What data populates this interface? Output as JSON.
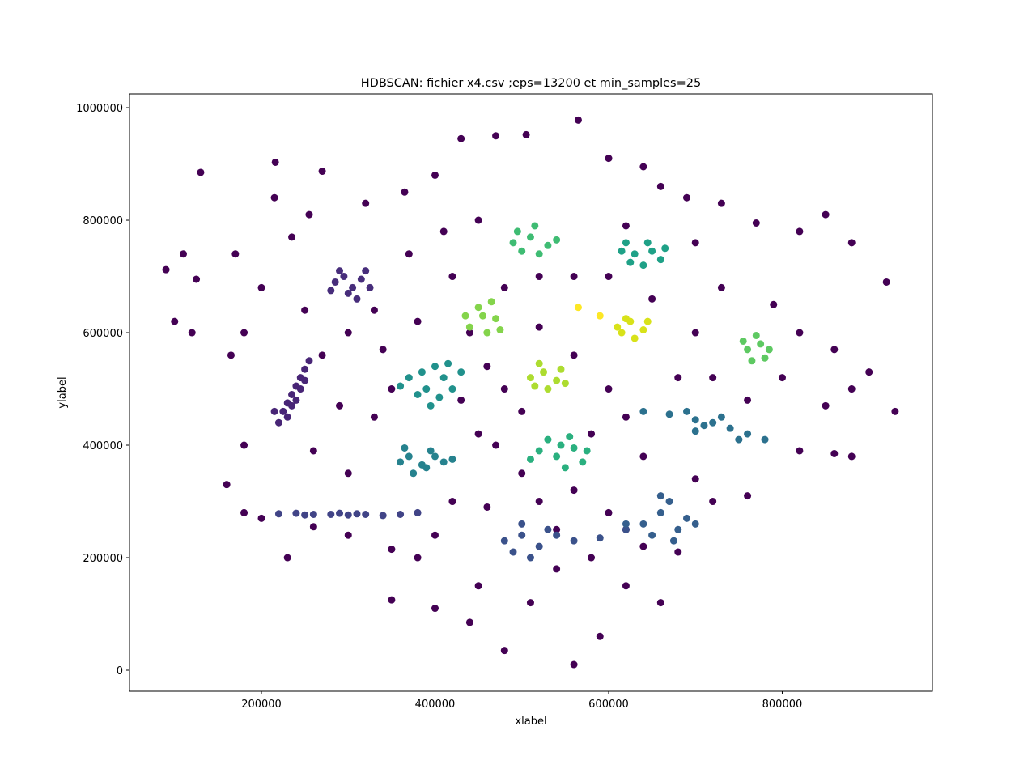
{
  "chart_data": {
    "type": "scatter",
    "title": "HDBSCAN: fichier x4.csv ;eps=13200 et min_samples=25",
    "x_label": "xlabel",
    "y_label": "ylabel",
    "xlim": [
      48000,
      973000
    ],
    "ylim": [
      -37400,
      1024500
    ],
    "xticks": [
      200000,
      400000,
      600000,
      800000
    ],
    "yticks": [
      0,
      200000,
      400000,
      600000,
      800000,
      1000000
    ],
    "series": [
      {
        "color": "#440154",
        "x": [
          90000,
          130000,
          110000,
          120000,
          100000,
          125000,
          170000,
          165000,
          180000,
          200000,
          215000,
          216000,
          270000,
          255000,
          235000,
          320000,
          365000,
          400000,
          430000,
          470000,
          505000,
          565000,
          600000,
          640000,
          660000,
          690000,
          730000,
          770000,
          820000,
          850000,
          880000,
          920000,
          860000,
          900000,
          880000,
          930000,
          850000,
          880000,
          860000,
          820000,
          760000,
          720000,
          700000,
          680000,
          640000,
          620000,
          590000,
          560000,
          480000,
          440000,
          400000,
          350000,
          350000,
          300000,
          260000,
          230000,
          200000,
          180000,
          160000,
          180000,
          260000,
          300000,
          330000,
          290000,
          270000,
          250000,
          300000,
          340000,
          380000,
          420000,
          450000,
          480000,
          520000,
          560000,
          600000,
          620000,
          580000,
          500000,
          450000,
          420000,
          460000,
          520000,
          560000,
          600000,
          640000,
          680000,
          700000,
          730000,
          700000,
          620000,
          560000,
          520000,
          600000,
          650000,
          720000,
          760000,
          800000,
          820000,
          790000,
          460000,
          480000,
          430000,
          350000,
          330000,
          370000,
          410000,
          440000,
          470000,
          500000,
          540000,
          580000,
          620000,
          660000,
          510000,
          540000,
          450000,
          380000,
          400000
        ],
        "values": [
          712000,
          885000,
          740000,
          600000,
          620000,
          695000,
          740000,
          560000,
          600000,
          680000,
          840000,
          903000,
          887000,
          810000,
          770000,
          830000,
          850000,
          880000,
          945000,
          950000,
          952000,
          978000,
          910000,
          895000,
          860000,
          840000,
          830000,
          795000,
          780000,
          810000,
          760000,
          690000,
          570000,
          530000,
          500000,
          460000,
          470000,
          380000,
          385000,
          390000,
          310000,
          300000,
          340000,
          210000,
          220000,
          150000,
          60000,
          10000,
          35000,
          85000,
          110000,
          125000,
          215000,
          240000,
          255000,
          200000,
          270000,
          280000,
          330000,
          400000,
          390000,
          350000,
          450000,
          470000,
          560000,
          640000,
          600000,
          570000,
          620000,
          700000,
          800000,
          680000,
          610000,
          560000,
          500000,
          450000,
          420000,
          460000,
          420000,
          300000,
          290000,
          300000,
          320000,
          280000,
          380000,
          520000,
          600000,
          680000,
          760000,
          790000,
          700000,
          700000,
          700000,
          660000,
          520000,
          480000,
          520000,
          600000,
          650000,
          540000,
          500000,
          480000,
          500000,
          640000,
          740000,
          780000,
          600000,
          400000,
          350000,
          250000,
          200000,
          250000,
          120000,
          120000,
          180000,
          150000,
          200000,
          240000
        ]
      },
      {
        "color": "#472d7b",
        "x": [
          285000,
          295000,
          305000,
          315000,
          300000,
          320000,
          290000,
          310000,
          280000,
          325000
        ],
        "values": [
          690000,
          700000,
          680000,
          695000,
          670000,
          710000,
          710000,
          660000,
          675000,
          680000
        ]
      },
      {
        "color": "#482576",
        "x": [
          220000,
          225000,
          230000,
          235000,
          240000,
          245000,
          250000,
          255000,
          230000,
          245000,
          235000,
          250000,
          215000,
          240000
        ],
        "values": [
          440000,
          460000,
          475000,
          490000,
          505000,
          520000,
          535000,
          550000,
          450000,
          500000,
          470000,
          515000,
          460000,
          480000
        ]
      },
      {
        "color": "#414487",
        "x": [
          220000,
          240000,
          260000,
          280000,
          300000,
          320000,
          340000,
          360000,
          380000,
          250000,
          310000,
          290000
        ],
        "values": [
          278000,
          279000,
          277000,
          277000,
          276000,
          277000,
          275000,
          277000,
          280000,
          276000,
          278000,
          279000
        ]
      },
      {
        "color": "#3b528b",
        "x": [
          480000,
          500000,
          520000,
          540000,
          510000,
          490000,
          530000,
          560000,
          590000,
          620000,
          500000
        ],
        "values": [
          230000,
          240000,
          220000,
          240000,
          200000,
          210000,
          250000,
          230000,
          235000,
          250000,
          260000
        ]
      },
      {
        "color": "#355f8d",
        "x": [
          640000,
          660000,
          680000,
          670000,
          650000,
          690000,
          660000,
          620000,
          700000,
          675000
        ],
        "values": [
          260000,
          280000,
          250000,
          300000,
          240000,
          270000,
          310000,
          260000,
          260000,
          230000
        ]
      },
      {
        "color": "#2c718e",
        "x": [
          640000,
          670000,
          700000,
          720000,
          740000,
          760000,
          780000,
          700000,
          730000,
          690000,
          750000,
          710000
        ],
        "values": [
          460000,
          455000,
          445000,
          440000,
          430000,
          420000,
          410000,
          425000,
          450000,
          460000,
          410000,
          435000
        ]
      },
      {
        "color": "#26828e",
        "x": [
          360000,
          370000,
          385000,
          400000,
          410000,
          375000,
          395000,
          365000,
          420000,
          390000
        ],
        "values": [
          370000,
          380000,
          365000,
          380000,
          370000,
          350000,
          390000,
          395000,
          375000,
          360000
        ]
      },
      {
        "color": "#21918c",
        "x": [
          370000,
          390000,
          410000,
          400000,
          380000,
          420000,
          395000,
          430000,
          360000,
          405000,
          415000,
          385000
        ],
        "values": [
          520000,
          500000,
          520000,
          540000,
          490000,
          500000,
          470000,
          530000,
          505000,
          485000,
          545000,
          530000
        ]
      },
      {
        "color": "#1fa187",
        "x": [
          620000,
          630000,
          650000,
          660000,
          640000,
          645000,
          625000,
          665000,
          615000
        ],
        "values": [
          760000,
          740000,
          745000,
          730000,
          720000,
          760000,
          725000,
          750000,
          745000
        ]
      },
      {
        "color": "#2ab07f",
        "x": [
          520000,
          540000,
          560000,
          550000,
          530000,
          570000,
          545000,
          510000,
          575000,
          555000
        ],
        "values": [
          390000,
          380000,
          395000,
          360000,
          410000,
          370000,
          400000,
          375000,
          390000,
          415000
        ]
      },
      {
        "color": "#3fbc73",
        "x": [
          490000,
          510000,
          530000,
          500000,
          520000,
          495000,
          515000,
          540000
        ],
        "values": [
          760000,
          770000,
          755000,
          745000,
          740000,
          780000,
          790000,
          765000
        ]
      },
      {
        "color": "#5ec962",
        "x": [
          760000,
          775000,
          780000,
          765000,
          770000,
          785000,
          755000
        ],
        "values": [
          570000,
          580000,
          555000,
          550000,
          595000,
          570000,
          585000
        ]
      },
      {
        "color": "#84d44b",
        "x": [
          440000,
          455000,
          470000,
          460000,
          450000,
          475000,
          435000,
          465000
        ],
        "values": [
          610000,
          630000,
          625000,
          600000,
          645000,
          605000,
          630000,
          655000
        ]
      },
      {
        "color": "#addc30",
        "x": [
          510000,
          525000,
          540000,
          530000,
          520000,
          545000,
          515000,
          550000
        ],
        "values": [
          520000,
          530000,
          515000,
          500000,
          545000,
          535000,
          505000,
          510000
        ]
      },
      {
        "color": "#d8e219",
        "x": [
          610000,
          625000,
          640000,
          630000,
          620000,
          645000,
          615000
        ],
        "values": [
          610000,
          620000,
          605000,
          590000,
          625000,
          620000,
          600000
        ]
      },
      {
        "color": "#fde725",
        "x": [
          565000,
          590000
        ],
        "values": [
          645000,
          630000
        ]
      }
    ]
  }
}
